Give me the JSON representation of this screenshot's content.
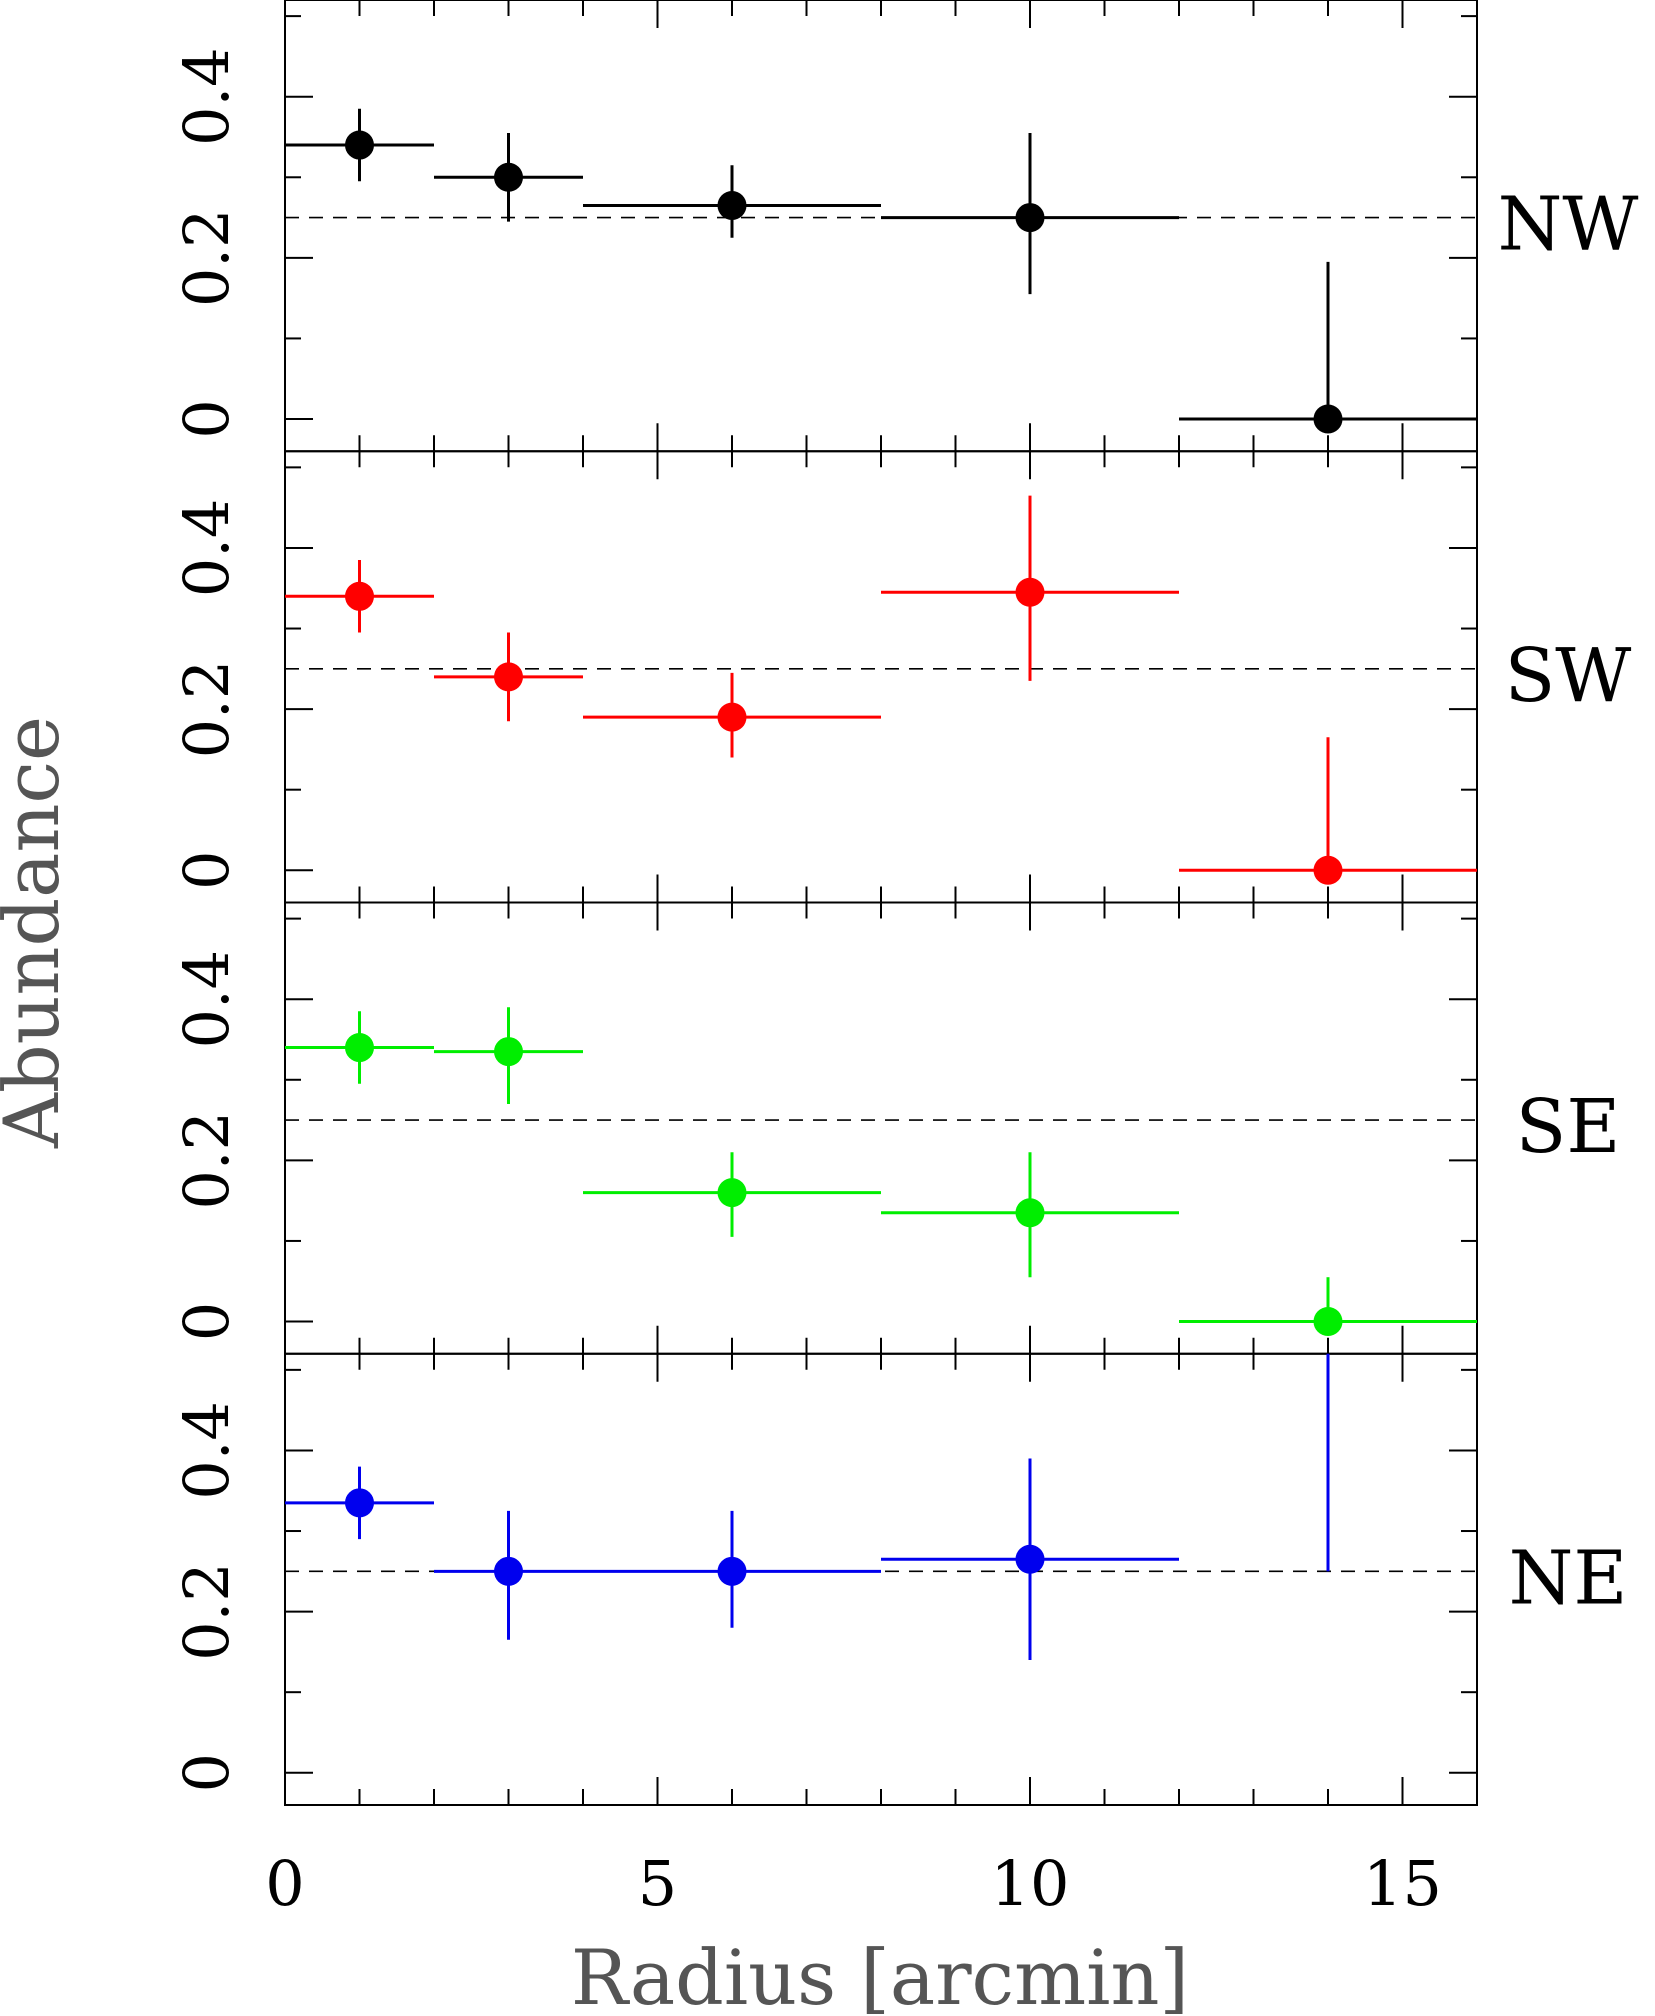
{
  "chart_data": {
    "type": "scatter",
    "xlabel": "Radius [arcmin]",
    "ylabel": "Abundance",
    "xlim": [
      0,
      16
    ],
    "ylim": [
      -0.04,
      0.52
    ],
    "x_ticks": [
      0,
      5,
      10,
      15
    ],
    "y_ticks": [
      0,
      0.2,
      0.4
    ],
    "reference_line": 0.25,
    "panels": [
      {
        "name": "NW",
        "color": "#000000",
        "points": [
          {
            "x": 1,
            "y": 0.34,
            "xerr": 1,
            "ylo": 0.295,
            "yhi": 0.385
          },
          {
            "x": 3,
            "y": 0.3,
            "xerr": 1,
            "ylo": 0.245,
            "yhi": 0.355
          },
          {
            "x": 6,
            "y": 0.265,
            "xerr": 2,
            "ylo": 0.225,
            "yhi": 0.315
          },
          {
            "x": 10,
            "y": 0.25,
            "xerr": 2,
            "ylo": 0.155,
            "yhi": 0.355
          },
          {
            "x": 14,
            "y": 0.0,
            "xerr": 2,
            "ylo": 0.0,
            "yhi": 0.195
          }
        ]
      },
      {
        "name": "SW",
        "color": "#ff0000",
        "points": [
          {
            "x": 1,
            "y": 0.34,
            "xerr": 1,
            "ylo": 0.295,
            "yhi": 0.385
          },
          {
            "x": 3,
            "y": 0.24,
            "xerr": 1,
            "ylo": 0.185,
            "yhi": 0.295
          },
          {
            "x": 6,
            "y": 0.19,
            "xerr": 2,
            "ylo": 0.14,
            "yhi": 0.245
          },
          {
            "x": 10,
            "y": 0.345,
            "xerr": 2,
            "ylo": 0.235,
            "yhi": 0.465
          },
          {
            "x": 14,
            "y": 0.0,
            "xerr": 2,
            "ylo": 0.0,
            "yhi": 0.165
          }
        ]
      },
      {
        "name": "SE",
        "color": "#00ee00",
        "points": [
          {
            "x": 1,
            "y": 0.34,
            "xerr": 1,
            "ylo": 0.295,
            "yhi": 0.385
          },
          {
            "x": 3,
            "y": 0.335,
            "xerr": 1,
            "ylo": 0.27,
            "yhi": 0.39
          },
          {
            "x": 6,
            "y": 0.16,
            "xerr": 2,
            "ylo": 0.105,
            "yhi": 0.21
          },
          {
            "x": 10,
            "y": 0.135,
            "xerr": 2,
            "ylo": 0.055,
            "yhi": 0.21
          },
          {
            "x": 14,
            "y": 0.0,
            "xerr": 2,
            "ylo": 0.0,
            "yhi": 0.055
          }
        ]
      },
      {
        "name": "NE",
        "color": "#0000ee",
        "points": [
          {
            "x": 1,
            "y": 0.335,
            "xerr": 1,
            "ylo": 0.29,
            "yhi": 0.38
          },
          {
            "x": 3,
            "y": 0.25,
            "xerr": 1,
            "ylo": 0.165,
            "yhi": 0.325
          },
          {
            "x": 6,
            "y": 0.25,
            "xerr": 2,
            "ylo": 0.18,
            "yhi": 0.325
          },
          {
            "x": 10,
            "y": 0.265,
            "xerr": 2,
            "ylo": 0.14,
            "yhi": 0.39
          },
          {
            "x": 14,
            "y": null,
            "xerr": 0,
            "ylo": 0.25,
            "yhi": 0.52
          }
        ]
      }
    ]
  }
}
